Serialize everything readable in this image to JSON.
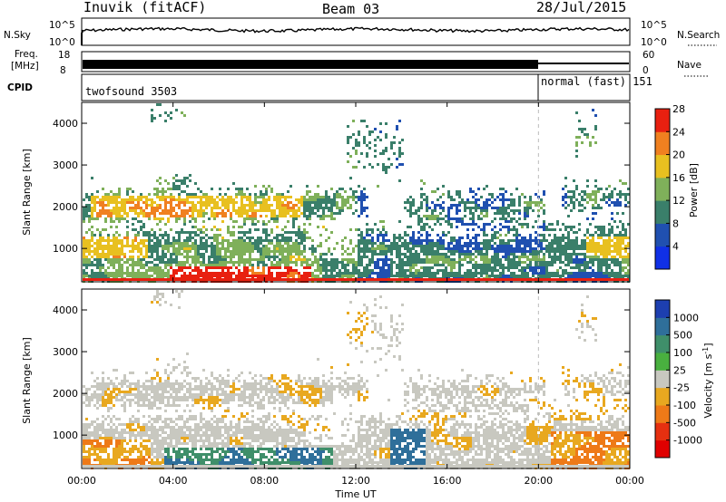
{
  "header": {
    "station": "Inuvik (fitACF)",
    "beam": "Beam 03",
    "date": "28/Jul/2015"
  },
  "sky_panel": {
    "left_label": "N.Sky",
    "right_label": "N.Search",
    "left_ticks": [
      "10^5",
      "10^0"
    ],
    "right_ticks": [
      "10^5",
      "10^0"
    ]
  },
  "freq_panel": {
    "label_line1": "Freq.",
    "label_line2": "[MHz]",
    "ticks": [
      "18",
      "8"
    ],
    "right_label": "Nave",
    "right_ticks": [
      "60",
      "0"
    ]
  },
  "cpid_panel": {
    "label": "CPID",
    "modes": [
      {
        "name": "twofsound 3503",
        "start_hour": 0
      },
      {
        "name": "normal (fast) 151",
        "start_hour": 20
      }
    ]
  },
  "chart_data": [
    {
      "type": "heatmap",
      "title": "Power",
      "ylabel": "Slant Range [km]",
      "xlabel": "Time UT",
      "xlim": [
        0,
        24
      ],
      "ylim": [
        200,
        4500
      ],
      "colorbar": {
        "label": "Power [dB]",
        "ticks": [
          4,
          8,
          12,
          16,
          20,
          24,
          28
        ],
        "colors": [
          "#1030e6",
          "#2050b0",
          "#3a7f6a",
          "#7fb05a",
          "#e8c020",
          "#f08020",
          "#e82010"
        ]
      }
    },
    {
      "type": "heatmap",
      "title": "Velocity",
      "ylabel": "Slant Range [km]",
      "xlabel": "Time UT",
      "xlim": [
        0,
        24
      ],
      "ylim": [
        200,
        4500
      ],
      "colorbar": {
        "label": "Velocity [m s",
        "label_sup": "-1",
        "label_end": "]",
        "ticks": [
          "1000",
          "500",
          "100",
          "25",
          "-25",
          "-100",
          "-500",
          "-1000"
        ],
        "colors": [
          "#1d3fb0",
          "#2f6f9a",
          "#3f8f6a",
          "#49b03f",
          "#c8c8c0",
          "#e8a820",
          "#ee7a18",
          "#e63010",
          "#e00000"
        ]
      }
    }
  ],
  "y_ticks": [
    "1000",
    "2000",
    "3000",
    "4000"
  ],
  "x_ticks": [
    "00:00",
    "04:00",
    "08:00",
    "12:00",
    "16:00",
    "20:00",
    "00:00"
  ],
  "x_axis_label": "Time UT"
}
